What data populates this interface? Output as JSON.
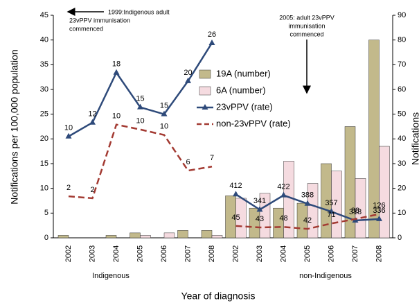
{
  "chart_data": {
    "type": "bar-line",
    "ylabel": "Notifications per 100,000 population",
    "y2label": "Notifications",
    "xlabel": "Year of diagnosis",
    "ylim": [
      0,
      45
    ],
    "yticks": [
      0,
      5,
      10,
      15,
      20,
      25,
      30,
      35,
      40,
      45
    ],
    "y2lim": [
      0,
      90
    ],
    "y2ticks": [
      0,
      10,
      20,
      30,
      40,
      50,
      60,
      70,
      80,
      90
    ],
    "series": [
      {
        "name": "19A (number)",
        "type": "bar",
        "axis": "y2",
        "color": "#c2b98b"
      },
      {
        "name": "6A (number)",
        "type": "bar",
        "axis": "y2",
        "color": "#f5dbe0"
      },
      {
        "name": "23vPPV (rate)",
        "type": "line",
        "axis": "y",
        "color": "#2e4a7a"
      },
      {
        "name": "non-23vPPV (rate)",
        "type": "line",
        "axis": "y",
        "color": "#a33a32",
        "dashed": true
      }
    ],
    "groups": [
      {
        "label": "Indigenous",
        "categories": [
          "2002",
          "2003",
          "2004",
          "2005",
          "2006",
          "2007",
          "2008"
        ],
        "values": [
          [
            1,
            0,
            1,
            2,
            0,
            3,
            3
          ],
          [
            0,
            0,
            0,
            1,
            2,
            0,
            1
          ],
          [
            20.5,
            23.3,
            33.4,
            26.4,
            25,
            31.7,
            39.4
          ],
          [
            8.4,
            8,
            22.9,
            21.9,
            20.8,
            13.6,
            14.4
          ]
        ],
        "counts": [
          null,
          null,
          [
            "10",
            "12",
            "18",
            "15",
            "15",
            "20",
            "26"
          ],
          [
            "2",
            "2",
            "10",
            "10",
            "10",
            "6",
            "7"
          ]
        ]
      },
      {
        "label": "non-Indigenous",
        "categories": [
          "2002",
          "2003",
          "2004",
          "2005",
          "2006",
          "2007",
          "2008"
        ],
        "values": [
          [
            17,
            12,
            12,
            14,
            30,
            45,
            80
          ],
          [
            16,
            18,
            31,
            22,
            27,
            24,
            37
          ],
          [
            8.8,
            5.7,
            8.6,
            6.9,
            5.3,
            3.5,
            3.8
          ],
          [
            2.4,
            2.1,
            2.2,
            1.8,
            2.9,
            3.8,
            4.8
          ]
        ],
        "counts": [
          null,
          null,
          [
            "412",
            "341",
            "422",
            "388",
            "357",
            "318",
            "336"
          ],
          [
            "45",
            "43",
            "48",
            "42",
            "71",
            "88",
            "126"
          ]
        ]
      }
    ],
    "annotations": [
      {
        "lines": [
          "1999:Indigenous adult",
          "23vPPV immunisation",
          "commenced"
        ]
      },
      {
        "lines": [
          "2005: adult 23vPPV",
          "immunisation",
          "commenced"
        ]
      }
    ]
  }
}
